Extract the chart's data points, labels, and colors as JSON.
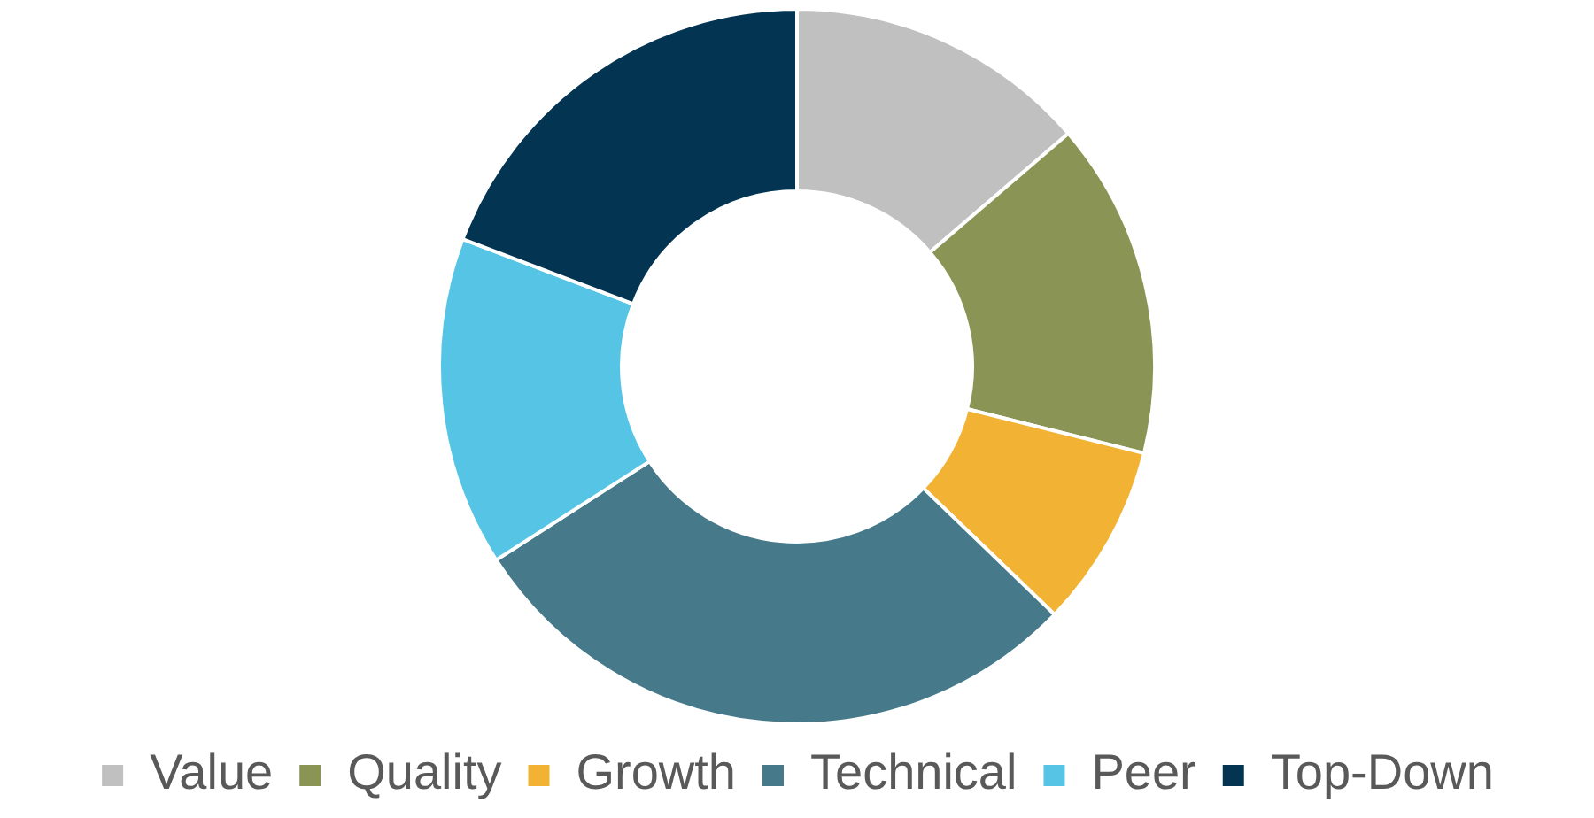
{
  "chart_data": {
    "type": "donut",
    "categories": [
      "Value",
      "Quality",
      "Growth",
      "Technical",
      "Peer",
      "Top-Down"
    ],
    "values": [
      13.7,
      15.2,
      8.3,
      28.7,
      14.9,
      19.2
    ],
    "colors": [
      "#c0c0c0",
      "#8a9455",
      "#f2b233",
      "#467a8a",
      "#56c5e5",
      "#033553"
    ],
    "legend": "bottom"
  }
}
